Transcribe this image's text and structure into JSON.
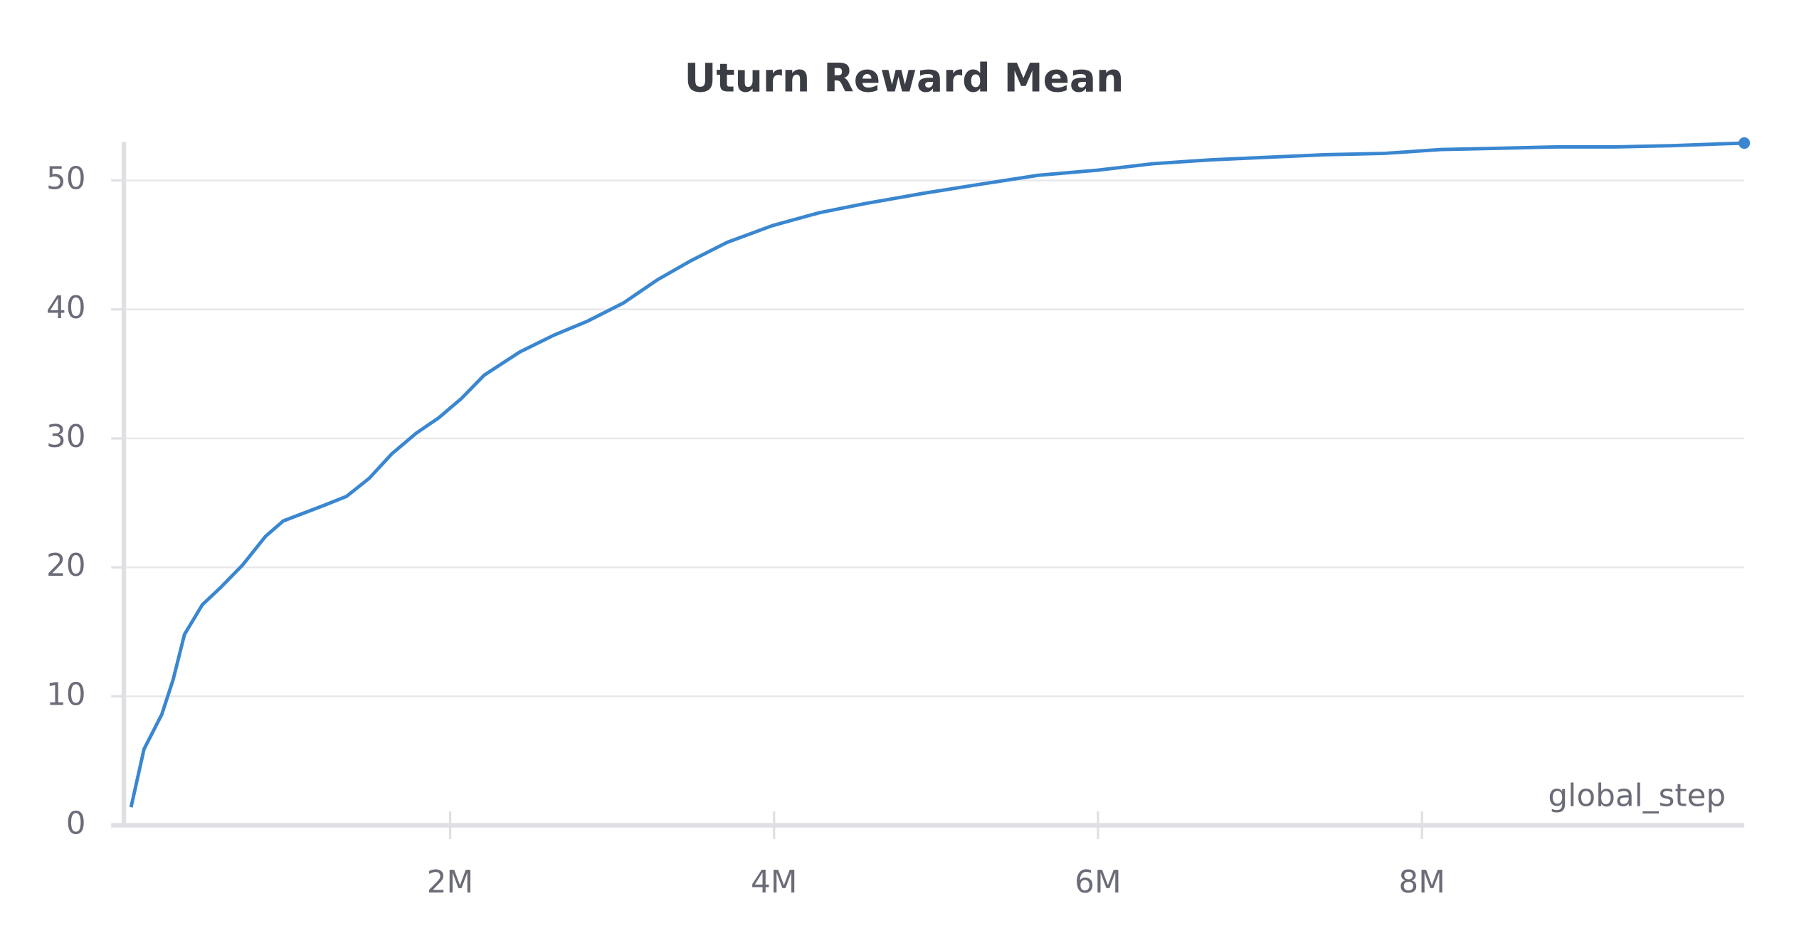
{
  "chart_data": {
    "type": "line",
    "title": "Uturn Reward Mean",
    "x_label": "global_step",
    "x": [
      30000,
      110000,
      220000,
      290000,
      360000,
      470000,
      580000,
      720000,
      860000,
      970000,
      1220000,
      1360000,
      1500000,
      1640000,
      1790000,
      1930000,
      2070000,
      2210000,
      2430000,
      2640000,
      2850000,
      3070000,
      3280000,
      3490000,
      3710000,
      3990000,
      4280000,
      4560000,
      4920000,
      5270000,
      5630000,
      6000000,
      6340000,
      6700000,
      7050000,
      7410000,
      7770000,
      8120000,
      8480000,
      8830000,
      9190000,
      9540000,
      9990000
    ],
    "series": [
      {
        "name": "Uturn Reward Mean",
        "color": "#3a87d0",
        "values": [
          1.4,
          5.9,
          8.6,
          11.3,
          14.8,
          17.1,
          18.4,
          20.2,
          22.4,
          23.6,
          24.8,
          25.5,
          26.9,
          28.8,
          30.4,
          31.6,
          33.1,
          34.9,
          36.7,
          38.0,
          39.1,
          40.5,
          42.3,
          43.8,
          45.2,
          46.5,
          47.5,
          48.2,
          49.0,
          49.7,
          50.4,
          50.8,
          51.3,
          51.6,
          51.8,
          52.0,
          52.1,
          52.4,
          52.5,
          52.6,
          52.6,
          52.7,
          52.9
        ]
      }
    ],
    "xlim": [
      0,
      9990000
    ],
    "xticks": [
      {
        "value": 2000000,
        "label": "2M"
      },
      {
        "value": 4000000,
        "label": "4M"
      },
      {
        "value": 6000000,
        "label": "6M"
      },
      {
        "value": 8000000,
        "label": "8M"
      }
    ],
    "ylim": [
      0,
      53
    ],
    "yticks": [
      0,
      10,
      20,
      30,
      40,
      50
    ],
    "grid": true
  }
}
